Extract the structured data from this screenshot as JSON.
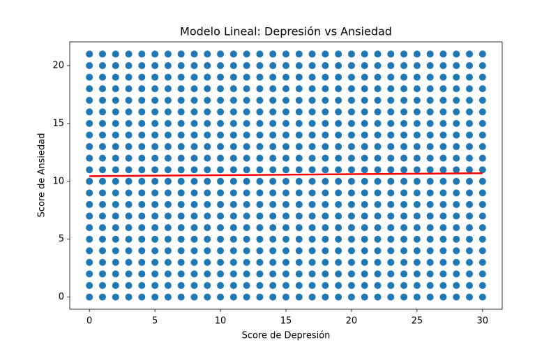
{
  "chart_data": {
    "type": "scatter",
    "title": "Modelo Lineal: Depresión vs Ansiedad",
    "x_label": "Score de Depresión",
    "y_label": "Score de Ansiedad",
    "xlim": [
      -1.5,
      31.5
    ],
    "ylim": [
      -1.05,
      22.05
    ],
    "xticks": [
      0,
      5,
      10,
      15,
      20,
      25,
      30
    ],
    "yticks": [
      0,
      5,
      10,
      15,
      20
    ],
    "points": {
      "color": "#1f77b4",
      "x": [
        0,
        1,
        2,
        3,
        4,
        5,
        6,
        7,
        8,
        9,
        10,
        11,
        12,
        13,
        14,
        15,
        16,
        17,
        18,
        19,
        20,
        21,
        22,
        23,
        24,
        25,
        26,
        27,
        28,
        29,
        30,
        0,
        1,
        2,
        3,
        4,
        5,
        6,
        7,
        8,
        9,
        10,
        11,
        12,
        13,
        14,
        15,
        16,
        17,
        18,
        19,
        20,
        21,
        22,
        23,
        24,
        25,
        26,
        27,
        28,
        29,
        30,
        0,
        1,
        2,
        3,
        4,
        5,
        6,
        7,
        8,
        9,
        10,
        11,
        12,
        13,
        14,
        15,
        16,
        17,
        18,
        19,
        20,
        21,
        22,
        23,
        24,
        25,
        26,
        27,
        28,
        29,
        30,
        0,
        1,
        2,
        3,
        4,
        5,
        6,
        7,
        8,
        9,
        10,
        11,
        12,
        13,
        14,
        15,
        16,
        17,
        18,
        19,
        20,
        21,
        22,
        23,
        24,
        25,
        26,
        27,
        28,
        29,
        30,
        0,
        1,
        2,
        3,
        4,
        5,
        6,
        7,
        8,
        9,
        10,
        11,
        12,
        13,
        14,
        15,
        16,
        17,
        18,
        19,
        20,
        21,
        22,
        23,
        24,
        25,
        26,
        27,
        28,
        29,
        30,
        0,
        1,
        2,
        3,
        4,
        5,
        6,
        7,
        8,
        9,
        10,
        11,
        12,
        13,
        14,
        15,
        16,
        17,
        18,
        19,
        20,
        21,
        22,
        23,
        24,
        25,
        26,
        27,
        28,
        29,
        30,
        0,
        1,
        2,
        3,
        4,
        5,
        6,
        7,
        8,
        9,
        10,
        11,
        12,
        13,
        14,
        15,
        16,
        17,
        18,
        19,
        20,
        21,
        22,
        23,
        24,
        25,
        26,
        27,
        28,
        29,
        30,
        0,
        1,
        2,
        3,
        4,
        5,
        6,
        7,
        8,
        9,
        10,
        11,
        12,
        13,
        14,
        15,
        16,
        17,
        18,
        19,
        20,
        21,
        22,
        23,
        24,
        25,
        26,
        27,
        28,
        29,
        30,
        0,
        1,
        2,
        3,
        4,
        5,
        6,
        7,
        8,
        9,
        10,
        11,
        12,
        13,
        14,
        15,
        16,
        17,
        18,
        19,
        20,
        21,
        22,
        23,
        24,
        25,
        26,
        27,
        28,
        29,
        30,
        0,
        1,
        2,
        3,
        4,
        5,
        6,
        7,
        8,
        9,
        10,
        11,
        12,
        13,
        14,
        15,
        16,
        17,
        18,
        19,
        20,
        21,
        22,
        23,
        24,
        25,
        26,
        27,
        28,
        29,
        30,
        0,
        1,
        2,
        3,
        4,
        5,
        6,
        7,
        8,
        9,
        10,
        11,
        12,
        13,
        14,
        15,
        16,
        17,
        18,
        19,
        20,
        21,
        22,
        23,
        24,
        25,
        26,
        27,
        28,
        29,
        30,
        0,
        1,
        2,
        3,
        4,
        5,
        6,
        7,
        8,
        9,
        10,
        11,
        12,
        13,
        14,
        15,
        16,
        17,
        18,
        19,
        20,
        21,
        22,
        23,
        24,
        25,
        26,
        27,
        28,
        29,
        30,
        0,
        1,
        2,
        3,
        4,
        5,
        6,
        7,
        8,
        9,
        10,
        11,
        12,
        13,
        14,
        15,
        16,
        17,
        18,
        19,
        20,
        21,
        22,
        23,
        24,
        25,
        26,
        27,
        28,
        29,
        30,
        0,
        1,
        2,
        3,
        4,
        5,
        6,
        7,
        8,
        9,
        10,
        11,
        12,
        13,
        14,
        15,
        16,
        17,
        18,
        19,
        20,
        21,
        22,
        23,
        24,
        25,
        26,
        27,
        28,
        29,
        30,
        0,
        1,
        2,
        3,
        4,
        5,
        6,
        7,
        8,
        9,
        10,
        11,
        12,
        13,
        14,
        15,
        16,
        17,
        18,
        19,
        20,
        21,
        22,
        23,
        24,
        25,
        26,
        27,
        28,
        29,
        30,
        0,
        1,
        2,
        3,
        4,
        5,
        6,
        7,
        8,
        9,
        10,
        11,
        12,
        13,
        14,
        15,
        16,
        17,
        18,
        19,
        20,
        21,
        22,
        23,
        24,
        25,
        26,
        27,
        28,
        29,
        30,
        0,
        1,
        2,
        3,
        4,
        5,
        6,
        7,
        8,
        9,
        10,
        11,
        12,
        13,
        14,
        15,
        16,
        17,
        18,
        19,
        20,
        21,
        22,
        23,
        24,
        25,
        26,
        27,
        28,
        29,
        30,
        0,
        1,
        2,
        3,
        4,
        5,
        6,
        7,
        8,
        9,
        10,
        11,
        12,
        13,
        14,
        15,
        16,
        17,
        18,
        19,
        20,
        21,
        22,
        23,
        24,
        25,
        26,
        27,
        28,
        29,
        30,
        0,
        1,
        2,
        3,
        4,
        5,
        6,
        7,
        8,
        9,
        10,
        11,
        12,
        13,
        14,
        15,
        16,
        17,
        18,
        19,
        20,
        21,
        22,
        23,
        24,
        25,
        26,
        27,
        28,
        29,
        30,
        0,
        1,
        2,
        3,
        4,
        5,
        6,
        7,
        8,
        9,
        10,
        11,
        12,
        13,
        14,
        15,
        16,
        17,
        18,
        19,
        20,
        21,
        22,
        23,
        24,
        25,
        26,
        27,
        28,
        29,
        30,
        0,
        1,
        2,
        3,
        4,
        5,
        6,
        7,
        8,
        9,
        10,
        11,
        12,
        13,
        14,
        15,
        16,
        17,
        18,
        19,
        20,
        21,
        22,
        23,
        24,
        25,
        26,
        27,
        28,
        29,
        30,
        0,
        1,
        2,
        3,
        4,
        5,
        6,
        7,
        8,
        9,
        10,
        11,
        12,
        13,
        14,
        15,
        16,
        17,
        18,
        19,
        20,
        21,
        22,
        23,
        24,
        25,
        26,
        27,
        28,
        29,
        30
      ],
      "y": [
        0,
        0,
        0,
        0,
        0,
        0,
        0,
        0,
        0,
        0,
        0,
        0,
        0,
        0,
        0,
        0,
        0,
        0,
        0,
        0,
        0,
        0,
        0,
        0,
        0,
        0,
        0,
        0,
        0,
        0,
        0,
        1,
        1,
        1,
        1,
        1,
        1,
        1,
        1,
        1,
        1,
        1,
        1,
        1,
        1,
        1,
        1,
        1,
        1,
        1,
        1,
        1,
        1,
        1,
        1,
        1,
        1,
        1,
        1,
        1,
        1,
        1,
        2,
        2,
        2,
        2,
        2,
        2,
        2,
        2,
        2,
        2,
        2,
        2,
        2,
        2,
        2,
        2,
        2,
        2,
        2,
        2,
        2,
        2,
        2,
        2,
        2,
        2,
        2,
        2,
        2,
        2,
        2,
        3,
        3,
        3,
        3,
        3,
        3,
        3,
        3,
        3,
        3,
        3,
        3,
        3,
        3,
        3,
        3,
        3,
        3,
        3,
        3,
        3,
        3,
        3,
        3,
        3,
        3,
        3,
        3,
        3,
        3,
        3,
        4,
        4,
        4,
        4,
        4,
        4,
        4,
        4,
        4,
        4,
        4,
        4,
        4,
        4,
        4,
        4,
        4,
        4,
        4,
        4,
        4,
        4,
        4,
        4,
        4,
        4,
        4,
        4,
        4,
        4,
        4,
        5,
        5,
        5,
        5,
        5,
        5,
        5,
        5,
        5,
        5,
        5,
        5,
        5,
        5,
        5,
        5,
        5,
        5,
        5,
        5,
        5,
        5,
        5,
        5,
        5,
        5,
        5,
        5,
        5,
        5,
        5,
        6,
        6,
        6,
        6,
        6,
        6,
        6,
        6,
        6,
        6,
        6,
        6,
        6,
        6,
        6,
        6,
        6,
        6,
        6,
        6,
        6,
        6,
        6,
        6,
        6,
        6,
        6,
        6,
        6,
        6,
        6,
        7,
        7,
        7,
        7,
        7,
        7,
        7,
        7,
        7,
        7,
        7,
        7,
        7,
        7,
        7,
        7,
        7,
        7,
        7,
        7,
        7,
        7,
        7,
        7,
        7,
        7,
        7,
        7,
        7,
        7,
        7,
        8,
        8,
        8,
        8,
        8,
        8,
        8,
        8,
        8,
        8,
        8,
        8,
        8,
        8,
        8,
        8,
        8,
        8,
        8,
        8,
        8,
        8,
        8,
        8,
        8,
        8,
        8,
        8,
        8,
        8,
        8,
        9,
        9,
        9,
        9,
        9,
        9,
        9,
        9,
        9,
        9,
        9,
        9,
        9,
        9,
        9,
        9,
        9,
        9,
        9,
        9,
        9,
        9,
        9,
        9,
        9,
        9,
        9,
        9,
        9,
        9,
        9,
        10,
        10,
        10,
        10,
        10,
        10,
        10,
        10,
        10,
        10,
        10,
        10,
        10,
        10,
        10,
        10,
        10,
        10,
        10,
        10,
        10,
        10,
        10,
        10,
        10,
        10,
        10,
        10,
        10,
        10,
        10,
        11,
        11,
        11,
        11,
        11,
        11,
        11,
        11,
        11,
        11,
        11,
        11,
        11,
        11,
        11,
        11,
        11,
        11,
        11,
        11,
        11,
        11,
        11,
        11,
        11,
        11,
        11,
        11,
        11,
        11,
        11,
        12,
        12,
        12,
        12,
        12,
        12,
        12,
        12,
        12,
        12,
        12,
        12,
        12,
        12,
        12,
        12,
        12,
        12,
        12,
        12,
        12,
        12,
        12,
        12,
        12,
        12,
        12,
        12,
        12,
        12,
        12,
        13,
        13,
        13,
        13,
        13,
        13,
        13,
        13,
        13,
        13,
        13,
        13,
        13,
        13,
        13,
        13,
        13,
        13,
        13,
        13,
        13,
        13,
        13,
        13,
        13,
        13,
        13,
        13,
        13,
        13,
        13,
        14,
        14,
        14,
        14,
        14,
        14,
        14,
        14,
        14,
        14,
        14,
        14,
        14,
        14,
        14,
        14,
        14,
        14,
        14,
        14,
        14,
        14,
        14,
        14,
        14,
        14,
        14,
        14,
        14,
        14,
        14,
        15,
        15,
        15,
        15,
        15,
        15,
        15,
        15,
        15,
        15,
        15,
        15,
        15,
        15,
        15,
        15,
        15,
        15,
        15,
        15,
        15,
        15,
        15,
        15,
        15,
        15,
        15,
        15,
        15,
        15,
        15,
        16,
        16,
        16,
        16,
        16,
        16,
        16,
        16,
        16,
        16,
        16,
        16,
        16,
        16,
        16,
        16,
        16,
        16,
        16,
        16,
        16,
        16,
        16,
        16,
        16,
        16,
        16,
        16,
        16,
        16,
        16,
        17,
        17,
        17,
        17,
        17,
        17,
        17,
        17,
        17,
        17,
        17,
        17,
        17,
        17,
        17,
        17,
        17,
        17,
        17,
        17,
        17,
        17,
        17,
        17,
        17,
        17,
        17,
        17,
        17,
        17,
        17,
        18,
        18,
        18,
        18,
        18,
        18,
        18,
        18,
        18,
        18,
        18,
        18,
        18,
        18,
        18,
        18,
        18,
        18,
        18,
        18,
        18,
        18,
        18,
        18,
        18,
        18,
        18,
        18,
        18,
        18,
        18,
        19,
        19,
        19,
        19,
        19,
        19,
        19,
        19,
        19,
        19,
        19,
        19,
        19,
        19,
        19,
        19,
        19,
        19,
        19,
        19,
        19,
        19,
        19,
        19,
        19,
        19,
        19,
        19,
        19,
        19,
        19,
        20,
        20,
        20,
        20,
        20,
        20,
        20,
        20,
        20,
        20,
        20,
        20,
        20,
        20,
        20,
        20,
        20,
        20,
        20,
        20,
        20,
        20,
        20,
        20,
        20,
        20,
        20,
        20,
        20,
        20,
        20,
        21,
        21,
        21,
        21,
        21,
        21,
        21,
        21,
        21,
        21,
        21,
        21,
        21,
        21,
        21,
        21,
        21,
        21,
        21,
        21,
        21,
        21,
        21,
        21,
        21,
        21,
        21,
        21,
        21,
        21,
        21
      ]
    },
    "fit_line": {
      "color": "#ff0000",
      "x": [
        0,
        30
      ],
      "y": [
        10.45,
        10.7
      ]
    }
  }
}
